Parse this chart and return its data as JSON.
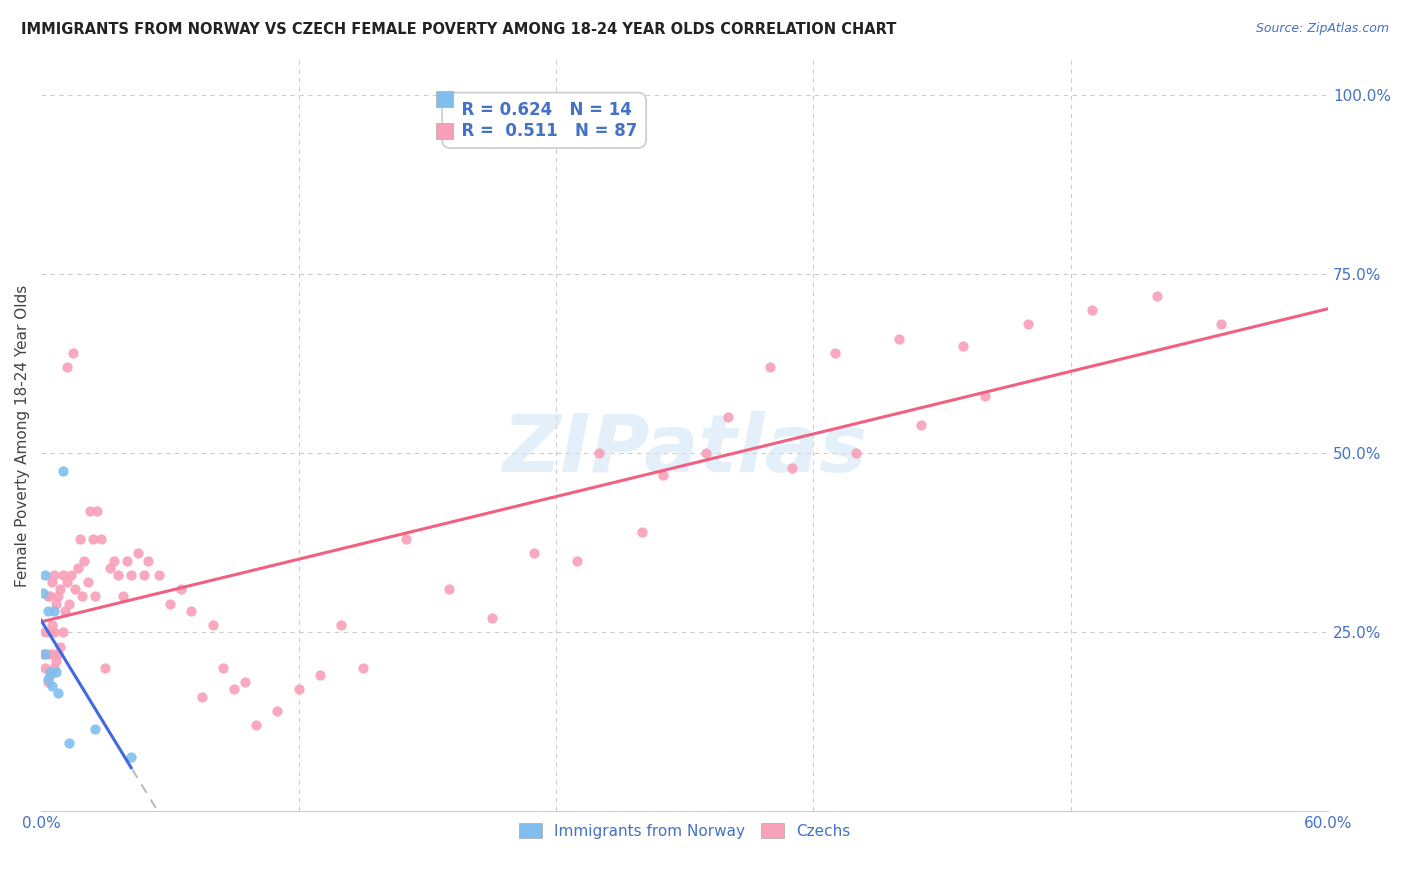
{
  "title": "IMMIGRANTS FROM NORWAY VS CZECH FEMALE POVERTY AMONG 18-24 YEAR OLDS CORRELATION CHART",
  "source": "Source: ZipAtlas.com",
  "ylabel": "Female Poverty Among 18-24 Year Olds",
  "xlim": [
    0.0,
    0.6
  ],
  "ylim": [
    0.0,
    1.05
  ],
  "norway_color": "#7fbfef",
  "czech_color": "#f8a0b8",
  "norway_line_color": "#4169e1",
  "czech_line_color": "#f06080",
  "R_norway": 0.624,
  "N_norway": 14,
  "R_czech": 0.511,
  "N_czech": 87,
  "watermark": "ZIPatlas",
  "background_color": "#ffffff",
  "grid_color": "#cccccc",
  "norway_x": [
    0.001,
    0.002,
    0.002,
    0.003,
    0.003,
    0.004,
    0.005,
    0.006,
    0.007,
    0.008,
    0.01,
    0.013,
    0.025,
    0.042
  ],
  "norway_y": [
    0.305,
    0.33,
    0.22,
    0.185,
    0.28,
    0.195,
    0.175,
    0.28,
    0.195,
    0.165,
    0.475,
    0.095,
    0.115,
    0.075
  ],
  "czech_x": [
    0.001,
    0.002,
    0.002,
    0.003,
    0.003,
    0.003,
    0.004,
    0.004,
    0.004,
    0.005,
    0.005,
    0.005,
    0.006,
    0.006,
    0.006,
    0.007,
    0.007,
    0.008,
    0.008,
    0.009,
    0.009,
    0.01,
    0.01,
    0.011,
    0.012,
    0.012,
    0.013,
    0.014,
    0.015,
    0.016,
    0.017,
    0.018,
    0.019,
    0.02,
    0.022,
    0.023,
    0.024,
    0.025,
    0.026,
    0.028,
    0.03,
    0.032,
    0.034,
    0.036,
    0.038,
    0.04,
    0.042,
    0.045,
    0.048,
    0.05,
    0.055,
    0.06,
    0.065,
    0.07,
    0.075,
    0.08,
    0.085,
    0.09,
    0.095,
    0.1,
    0.11,
    0.12,
    0.13,
    0.14,
    0.15,
    0.17,
    0.19,
    0.21,
    0.23,
    0.25,
    0.28,
    0.31,
    0.34,
    0.37,
    0.4,
    0.43,
    0.46,
    0.49,
    0.52,
    0.55,
    0.26,
    0.29,
    0.32,
    0.35,
    0.38,
    0.41,
    0.44
  ],
  "czech_y": [
    0.22,
    0.2,
    0.25,
    0.18,
    0.22,
    0.3,
    0.19,
    0.25,
    0.3,
    0.22,
    0.26,
    0.32,
    0.2,
    0.25,
    0.33,
    0.21,
    0.29,
    0.22,
    0.3,
    0.23,
    0.31,
    0.25,
    0.33,
    0.28,
    0.32,
    0.62,
    0.29,
    0.33,
    0.64,
    0.31,
    0.34,
    0.38,
    0.3,
    0.35,
    0.32,
    0.42,
    0.38,
    0.3,
    0.42,
    0.38,
    0.2,
    0.34,
    0.35,
    0.33,
    0.3,
    0.35,
    0.33,
    0.36,
    0.33,
    0.35,
    0.33,
    0.29,
    0.31,
    0.28,
    0.16,
    0.26,
    0.2,
    0.17,
    0.18,
    0.12,
    0.14,
    0.17,
    0.19,
    0.26,
    0.2,
    0.38,
    0.31,
    0.27,
    0.36,
    0.35,
    0.39,
    0.5,
    0.62,
    0.64,
    0.66,
    0.65,
    0.68,
    0.7,
    0.72,
    0.68,
    0.5,
    0.47,
    0.55,
    0.48,
    0.5,
    0.54,
    0.58
  ]
}
